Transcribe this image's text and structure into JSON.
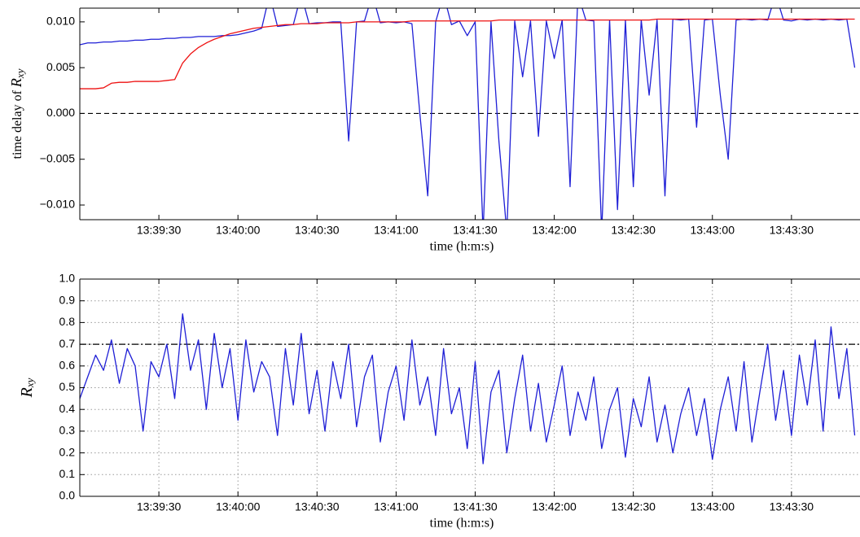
{
  "chart_data": [
    {
      "type": "line",
      "ylabel": {
        "text": "time delay of",
        "symbol": "R",
        "subscript": "xy"
      },
      "xlabel": "time (h:m:s)",
      "x": [
        "13:39:00",
        "13:39:03",
        "13:39:06",
        "13:39:09",
        "13:39:12",
        "13:39:15",
        "13:39:18",
        "13:39:21",
        "13:39:24",
        "13:39:27",
        "13:39:30",
        "13:39:33",
        "13:39:36",
        "13:39:39",
        "13:39:42",
        "13:39:45",
        "13:39:48",
        "13:39:51",
        "13:39:54",
        "13:39:57",
        "13:40:00",
        "13:40:03",
        "13:40:06",
        "13:40:09",
        "13:40:12",
        "13:40:15",
        "13:40:18",
        "13:40:21",
        "13:40:24",
        "13:40:27",
        "13:40:30",
        "13:40:33",
        "13:40:36",
        "13:40:39",
        "13:40:42",
        "13:40:45",
        "13:40:48",
        "13:40:51",
        "13:40:54",
        "13:40:57",
        "13:41:00",
        "13:41:03",
        "13:41:06",
        "13:41:09",
        "13:41:12",
        "13:41:15",
        "13:41:18",
        "13:41:21",
        "13:41:24",
        "13:41:27",
        "13:41:30",
        "13:41:33",
        "13:41:36",
        "13:41:39",
        "13:41:42",
        "13:41:45",
        "13:41:48",
        "13:41:51",
        "13:41:54",
        "13:41:57",
        "13:42:00",
        "13:42:03",
        "13:42:06",
        "13:42:09",
        "13:42:12",
        "13:42:15",
        "13:42:18",
        "13:42:21",
        "13:42:24",
        "13:42:27",
        "13:42:30",
        "13:42:33",
        "13:42:36",
        "13:42:39",
        "13:42:42",
        "13:42:45",
        "13:42:48",
        "13:42:51",
        "13:42:54",
        "13:42:57",
        "13:43:00",
        "13:43:03",
        "13:43:06",
        "13:43:09",
        "13:43:12",
        "13:43:15",
        "13:43:18",
        "13:43:21",
        "13:43:24",
        "13:43:27",
        "13:43:30",
        "13:43:33",
        "13:43:36",
        "13:43:39",
        "13:43:42",
        "13:43:45",
        "13:43:48",
        "13:43:51",
        "13:43:54"
      ],
      "series": [
        {
          "color": "#1f1fd6",
          "values": [
            0.0075,
            0.0077,
            0.0077,
            0.0078,
            0.0078,
            0.0079,
            0.0079,
            0.008,
            0.008,
            0.0081,
            0.0081,
            0.0082,
            0.0082,
            0.0083,
            0.0083,
            0.0084,
            0.0084,
            0.0084,
            0.0085,
            0.0085,
            0.0086,
            0.0088,
            0.009,
            0.0093,
            0.013,
            0.0095,
            0.0096,
            0.0097,
            0.013,
            0.0098,
            0.0099,
            0.0099,
            0.01,
            0.01,
            -0.003,
            0.01,
            0.0101,
            0.013,
            0.0099,
            0.01,
            0.0099,
            0.01,
            0.0098,
            0.0,
            -0.009,
            0.01,
            0.013,
            0.0097,
            0.0101,
            0.0085,
            0.01,
            -0.013,
            0.01,
            -0.003,
            -0.013,
            0.0101,
            0.004,
            0.0101,
            -0.0025,
            0.0101,
            0.006,
            0.0102,
            -0.008,
            0.013,
            0.0102,
            0.0101,
            -0.013,
            0.0102,
            -0.0105,
            0.0102,
            -0.008,
            0.0102,
            0.002,
            0.0102,
            -0.009,
            0.0103,
            0.0102,
            0.0103,
            -0.0015,
            0.0102,
            0.0103,
            0.002,
            -0.005,
            0.0102,
            0.0103,
            0.0102,
            0.0103,
            0.0102,
            0.013,
            0.0102,
            0.0101,
            0.0103,
            0.0102,
            0.0103,
            0.0102,
            0.0103,
            0.0102,
            0.0103,
            0.005
          ]
        },
        {
          "color": "#ee1111",
          "values": [
            0.0027,
            0.0027,
            0.0027,
            0.0028,
            0.0033,
            0.0034,
            0.0034,
            0.0035,
            0.0035,
            0.0035,
            0.0035,
            0.0036,
            0.0037,
            0.0055,
            0.0065,
            0.0072,
            0.0077,
            0.0081,
            0.0084,
            0.0087,
            0.0089,
            0.0091,
            0.0093,
            0.0094,
            0.0095,
            0.0096,
            0.0097,
            0.0097,
            0.0098,
            0.0098,
            0.0098,
            0.0099,
            0.0099,
            0.0099,
            0.0099,
            0.01,
            0.01,
            0.01,
            0.01,
            0.01,
            0.01,
            0.01,
            0.0101,
            0.0101,
            0.0101,
            0.0101,
            0.0101,
            0.0101,
            0.0101,
            0.0101,
            0.0101,
            0.0101,
            0.0101,
            0.0102,
            0.0102,
            0.0102,
            0.0102,
            0.0102,
            0.0102,
            0.0102,
            0.0102,
            0.0102,
            0.0102,
            0.0102,
            0.0102,
            0.0102,
            0.0102,
            0.0102,
            0.0102,
            0.0102,
            0.0102,
            0.0102,
            0.0102,
            0.0103,
            0.0103,
            0.0103,
            0.0103,
            0.0103,
            0.0103,
            0.0103,
            0.0103,
            0.0103,
            0.0103,
            0.0103,
            0.0103,
            0.0103,
            0.0103,
            0.0103,
            0.0103,
            0.0103,
            0.0103,
            0.0103,
            0.0103,
            0.0103,
            0.0103,
            0.0103,
            0.0103,
            0.0103,
            0.0103
          ]
        }
      ],
      "xlim": [
        "13:39:00",
        "13:43:56"
      ],
      "xticks": [
        "13:39:30",
        "13:40:00",
        "13:40:30",
        "13:41:00",
        "13:41:30",
        "13:42:00",
        "13:42:30",
        "13:43:00",
        "13:43:30"
      ],
      "ylim": [
        -0.0116,
        0.0115
      ],
      "yticks": [
        {
          "value": -0.01,
          "label": "−0.010"
        },
        {
          "value": -0.005,
          "label": "−0.005"
        },
        {
          "value": 0,
          "label": "0.000"
        },
        {
          "value": 0.005,
          "label": "0.005"
        },
        {
          "value": 0.01,
          "label": "0.010"
        }
      ],
      "hline": {
        "value": 0,
        "style": "dashed"
      },
      "grid": false
    },
    {
      "type": "line",
      "ylabel": {
        "symbol": "R",
        "subscript": "xy"
      },
      "xlabel": "time (h:m:s)",
      "x": [
        "13:39:00",
        "13:39:03",
        "13:39:06",
        "13:39:09",
        "13:39:12",
        "13:39:15",
        "13:39:18",
        "13:39:21",
        "13:39:24",
        "13:39:27",
        "13:39:30",
        "13:39:33",
        "13:39:36",
        "13:39:39",
        "13:39:42",
        "13:39:45",
        "13:39:48",
        "13:39:51",
        "13:39:54",
        "13:39:57",
        "13:40:00",
        "13:40:03",
        "13:40:06",
        "13:40:09",
        "13:40:12",
        "13:40:15",
        "13:40:18",
        "13:40:21",
        "13:40:24",
        "13:40:27",
        "13:40:30",
        "13:40:33",
        "13:40:36",
        "13:40:39",
        "13:40:42",
        "13:40:45",
        "13:40:48",
        "13:40:51",
        "13:40:54",
        "13:40:57",
        "13:41:00",
        "13:41:03",
        "13:41:06",
        "13:41:09",
        "13:41:12",
        "13:41:15",
        "13:41:18",
        "13:41:21",
        "13:41:24",
        "13:41:27",
        "13:41:30",
        "13:41:33",
        "13:41:36",
        "13:41:39",
        "13:41:42",
        "13:41:45",
        "13:41:48",
        "13:41:51",
        "13:41:54",
        "13:41:57",
        "13:42:00",
        "13:42:03",
        "13:42:06",
        "13:42:09",
        "13:42:12",
        "13:42:15",
        "13:42:18",
        "13:42:21",
        "13:42:24",
        "13:42:27",
        "13:42:30",
        "13:42:33",
        "13:42:36",
        "13:42:39",
        "13:42:42",
        "13:42:45",
        "13:42:48",
        "13:42:51",
        "13:42:54",
        "13:42:57",
        "13:43:00",
        "13:43:03",
        "13:43:06",
        "13:43:09",
        "13:43:12",
        "13:43:15",
        "13:43:18",
        "13:43:21",
        "13:43:24",
        "13:43:27",
        "13:43:30",
        "13:43:33",
        "13:43:36",
        "13:43:39",
        "13:43:42",
        "13:43:45",
        "13:43:48",
        "13:43:51",
        "13:43:54"
      ],
      "series": [
        {
          "color": "#1f1fd6",
          "values": [
            0.45,
            0.55,
            0.65,
            0.58,
            0.72,
            0.52,
            0.68,
            0.6,
            0.3,
            0.62,
            0.55,
            0.7,
            0.45,
            0.84,
            0.58,
            0.72,
            0.4,
            0.75,
            0.5,
            0.68,
            0.35,
            0.72,
            0.48,
            0.62,
            0.55,
            0.28,
            0.68,
            0.42,
            0.75,
            0.38,
            0.58,
            0.3,
            0.62,
            0.45,
            0.7,
            0.32,
            0.55,
            0.65,
            0.25,
            0.48,
            0.6,
            0.35,
            0.72,
            0.42,
            0.55,
            0.28,
            0.68,
            0.38,
            0.5,
            0.22,
            0.62,
            0.15,
            0.48,
            0.58,
            0.2,
            0.45,
            0.65,
            0.3,
            0.52,
            0.25,
            0.42,
            0.6,
            0.28,
            0.48,
            0.35,
            0.55,
            0.22,
            0.4,
            0.5,
            0.18,
            0.45,
            0.32,
            0.55,
            0.25,
            0.42,
            0.2,
            0.38,
            0.5,
            0.28,
            0.45,
            0.17,
            0.4,
            0.55,
            0.3,
            0.62,
            0.25,
            0.48,
            0.7,
            0.35,
            0.58,
            0.28,
            0.65,
            0.42,
            0.72,
            0.3,
            0.78,
            0.45,
            0.68,
            0.28
          ]
        }
      ],
      "xlim": [
        "13:39:00",
        "13:43:56"
      ],
      "xticks": [
        "13:39:30",
        "13:40:00",
        "13:40:30",
        "13:41:00",
        "13:41:30",
        "13:42:00",
        "13:42:30",
        "13:43:00",
        "13:43:30"
      ],
      "ylim": [
        0,
        1
      ],
      "yticks": [
        {
          "value": 0,
          "label": "0.0"
        },
        0.1,
        0.2,
        0.3,
        0.4,
        0.5,
        0.6,
        0.7,
        0.8,
        0.9,
        {
          "value": 1,
          "label": "1.0"
        }
      ],
      "hline": {
        "value": 0.7,
        "style": "dashdot"
      },
      "grid": true
    }
  ]
}
